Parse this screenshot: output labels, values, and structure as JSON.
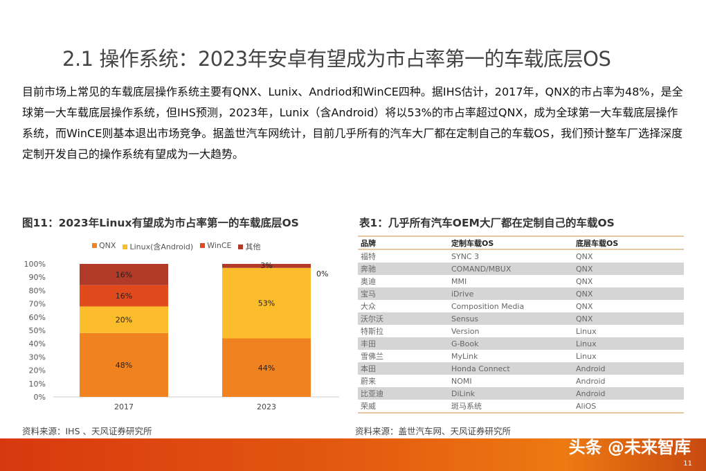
{
  "title": "2.1 操作系统：2023年安卓有望成为市占率第一的车载底层OS",
  "paragraph": "目前市场上常见的车载底层操作系统主要有QNX、Lunix、Andriod和WinCE四种。据IHS估计，2017年，QNX的市占率为48%，是全球第一大车载底层操作系统，但IHS预测，2023年，Lunix（含Android）将以53%的市占率超过QNX，成为全球第一大车载底层操作系统，而WinCE则基本退出市场竞争。据盖世汽车网统计，目前几乎所有的汽车大厂都在定制自己的车载OS，我们预计整车厂选择深度定制开发自己的操作系统有望成为一大趋势。",
  "figure": {
    "caption": "图11：2023年Linux有望成为市占率第一的车载底层OS",
    "source": "资料来源：IHS 、天风证券研究所"
  },
  "chart_data": {
    "type": "bar",
    "stacked": true,
    "categories": [
      "2017",
      "2023"
    ],
    "series": [
      {
        "name": "QNX",
        "values": [
          48,
          44
        ],
        "labels": [
          "48%",
          "44%"
        ],
        "color": "#f0831f"
      },
      {
        "name": "Linux(含Android)",
        "values": [
          20,
          53
        ],
        "labels": [
          "20%",
          "53%"
        ],
        "color": "#fbbd2b"
      },
      {
        "name": "WinCE",
        "values": [
          16,
          0
        ],
        "labels": [
          "16%",
          "0%"
        ],
        "color": "#e04a1c"
      },
      {
        "name": "其他",
        "values": [
          16,
          3
        ],
        "labels": [
          "16%",
          "3%"
        ],
        "color": "#b23a29"
      }
    ],
    "ylim": [
      0,
      100
    ],
    "yticks": [
      "0%",
      "10%",
      "20%",
      "30%",
      "40%",
      "50%",
      "60%",
      "70%",
      "80%",
      "90%",
      "100%"
    ],
    "legend": "top",
    "grid": false
  },
  "table": {
    "caption": "表1：几乎所有汽车OEM大厂都在定制自己的车载OS",
    "headers": [
      "品牌",
      "定制车载OS",
      "底层车载OS"
    ],
    "rows": [
      [
        "福特",
        "SYNC 3",
        "QNX"
      ],
      [
        "奔驰",
        "COMAND/MBUX",
        "QNX"
      ],
      [
        "奥迪",
        "MMI",
        "QNX"
      ],
      [
        "宝马",
        "iDrive",
        "QNX"
      ],
      [
        "大众",
        "Composition Media",
        "QNX"
      ],
      [
        "沃尔沃",
        "Sensus",
        "QNX"
      ],
      [
        "特斯拉",
        "Version",
        "Linux"
      ],
      [
        "丰田",
        "G-Book",
        "Linux"
      ],
      [
        "雪佛兰",
        "MyLink",
        "Linux"
      ],
      [
        "本田",
        "Honda Connect",
        "Android"
      ],
      [
        "蔚来",
        "NOMI",
        "Android"
      ],
      [
        "比亚迪",
        "DiLink",
        "Android"
      ],
      [
        "荣威",
        "斑马系统",
        "AliOS"
      ]
    ],
    "source": "资料来源：盖世汽车网、天风证券研究所"
  },
  "footer": {
    "watermark": "头条 @未来智库",
    "page": "11"
  }
}
